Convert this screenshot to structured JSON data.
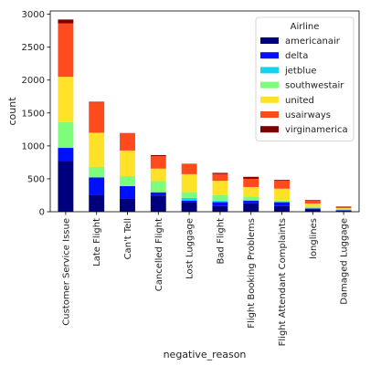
{
  "chart_data": {
    "type": "bar",
    "stacked": true,
    "xlabel": "negative_reason",
    "ylabel": "count",
    "ylim": [
      0,
      3050
    ],
    "yticks": [
      0,
      500,
      1000,
      1500,
      2000,
      2500,
      3000
    ],
    "grid": false,
    "legend": {
      "title": "Airline",
      "placement": "top-right"
    },
    "categories": [
      "Customer Service Issue",
      "Late Flight",
      "Can't Tell",
      "Cancelled Flight",
      "Lost Luggage",
      "Bad Flight",
      "Flight Booking Problems",
      "Flight Attendant Complaints",
      "longlines",
      "Damaged Luggage"
    ],
    "series": [
      {
        "name": "americanair",
        "color": "#00007f",
        "values": [
          770,
          250,
          200,
          245,
          150,
          85,
          130,
          85,
          35,
          15
        ]
      },
      {
        "name": "delta",
        "color": "#0010ff",
        "values": [
          200,
          270,
          190,
          50,
          20,
          60,
          40,
          60,
          15,
          10
        ]
      },
      {
        "name": "jetblue",
        "color": "#10d4f0",
        "values": [
          0,
          0,
          0,
          0,
          40,
          20,
          0,
          0,
          0,
          0
        ]
      },
      {
        "name": "southwestair",
        "color": "#7dfd7a",
        "values": [
          390,
          160,
          150,
          170,
          90,
          85,
          60,
          25,
          25,
          10
        ]
      },
      {
        "name": "united",
        "color": "#ffe228",
        "values": [
          690,
          520,
          390,
          190,
          270,
          220,
          145,
          180,
          50,
          20
        ]
      },
      {
        "name": "usairways",
        "color": "#ff4a1d",
        "values": [
          810,
          460,
          260,
          190,
          160,
          105,
          125,
          125,
          50,
          20
        ]
      },
      {
        "name": "virginamerica",
        "color": "#7f0000",
        "values": [
          60,
          10,
          5,
          15,
          0,
          15,
          30,
          10,
          5,
          5
        ]
      }
    ]
  }
}
